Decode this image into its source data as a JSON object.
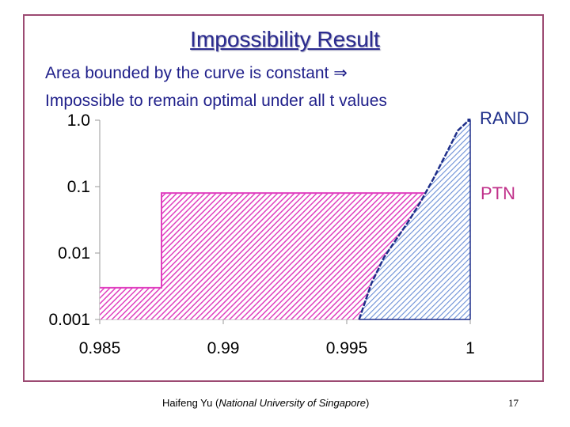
{
  "slide": {
    "title": "Impossibility Result",
    "bullets": [
      "Area bounded by the curve is constant ⇒",
      "Impossible to remain optimal under all t values"
    ],
    "footer_prefix": "Haifeng Yu (",
    "footer_affiliation": "National University of Singapore",
    "footer_suffix": ")",
    "page_number": "17",
    "frame_color": "#9c4a72",
    "text_color": "#1f1f8a"
  },
  "chart_data": {
    "type": "area",
    "title": "",
    "xlabel": "",
    "ylabel": "",
    "x_scale": "linear",
    "y_scale": "log",
    "xlim": [
      0.985,
      1.0
    ],
    "ylim": [
      0.001,
      1.0
    ],
    "x_ticks": [
      0.985,
      0.99,
      0.995,
      1.0
    ],
    "x_tick_labels": [
      "0.985",
      "0.99",
      "0.995",
      "1"
    ],
    "y_ticks": [
      0.001,
      0.01,
      0.1,
      1.0
    ],
    "y_tick_labels": [
      "0.001",
      "0.01",
      "0.1",
      "1.0"
    ],
    "grid": false,
    "series": [
      {
        "name": "RAND",
        "color": "#1f2f8a",
        "fill_color": "#6b8fd6",
        "points": [
          [
            0.9955,
            0.001
          ],
          [
            0.996,
            0.0035
          ],
          [
            0.9965,
            0.0085
          ],
          [
            0.997,
            0.016
          ],
          [
            0.9975,
            0.03
          ],
          [
            0.998,
            0.06
          ],
          [
            0.9985,
            0.13
          ],
          [
            0.999,
            0.3
          ],
          [
            0.9995,
            0.7
          ],
          [
            0.99995,
            1.0
          ]
        ]
      },
      {
        "name": "PTN",
        "color": "#e040c0",
        "fill_color": "#e040c0",
        "points": [
          [
            0.985,
            0.003
          ],
          [
            0.9875,
            0.003
          ],
          [
            0.9875,
            0.08
          ],
          [
            0.99975,
            0.08
          ]
        ]
      }
    ]
  }
}
